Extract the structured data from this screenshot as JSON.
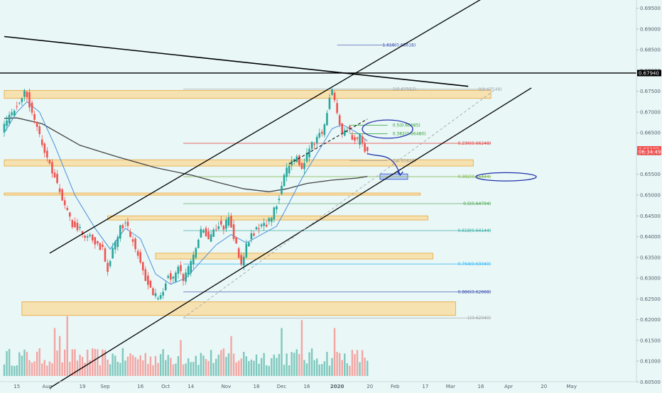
{
  "chart_data": {
    "type": "candlestick",
    "y_axis": {
      "ylim": [
        0.603,
        0.697
      ],
      "ticks": [
        "0.69500",
        "0.69000",
        "0.68500",
        "0.68000",
        "0.67500",
        "0.67000",
        "0.66500",
        "0.66000",
        "0.65500",
        "0.65000",
        "0.64500",
        "0.64000",
        "0.63500",
        "0.63000",
        "0.62500",
        "0.62000",
        "0.61500",
        "0.61000",
        "0.60500"
      ],
      "price_labels": [
        {
          "value": 0.6794,
          "text": "0.67940",
          "bg": "#000000",
          "fg": "#ffffff"
        },
        {
          "value": 0.66103,
          "text": "0.66103",
          "bg": "#ef5350",
          "fg": "#ffffff"
        },
        {
          "value": 0.6604,
          "text": "06:34:49",
          "bg": "#ef5350",
          "fg": "#ffffff"
        }
      ]
    },
    "x_axis": {
      "ticks": [
        {
          "label": "15",
          "bar": 5,
          "bold": false
        },
        {
          "label": "Aug",
          "bar": 17,
          "bold": false
        },
        {
          "label": "19",
          "bar": 31,
          "bold": false
        },
        {
          "label": "Sep",
          "bar": 40,
          "bold": false
        },
        {
          "label": "16",
          "bar": 54,
          "bold": false
        },
        {
          "label": "Oct",
          "bar": 64,
          "bold": false
        },
        {
          "label": "14",
          "bar": 74,
          "bold": false
        },
        {
          "label": "Nov",
          "bar": 88,
          "bold": false
        },
        {
          "label": "18",
          "bar": 100,
          "bold": false
        },
        {
          "label": "Dec",
          "bar": 110,
          "bold": false
        },
        {
          "label": "16",
          "bar": 120,
          "bold": false
        },
        {
          "label": "2020",
          "bar": 132,
          "bold": true
        },
        {
          "label": "20",
          "bar": 145,
          "bold": false
        },
        {
          "label": "Feb",
          "bar": 155,
          "bold": false
        },
        {
          "label": "17",
          "bar": 167,
          "bold": false
        },
        {
          "label": "Mar",
          "bar": 177,
          "bold": false
        },
        {
          "label": "16",
          "bar": 189,
          "bold": false
        },
        {
          "label": "Apr",
          "bar": 200,
          "bold": false
        },
        {
          "label": "20",
          "bar": 214,
          "bold": false
        },
        {
          "label": "May",
          "bar": 225,
          "bold": false
        }
      ]
    },
    "price_path": [
      [
        0,
        0.6655
      ],
      [
        4,
        0.67
      ],
      [
        8,
        0.674
      ],
      [
        9,
        0.6752
      ],
      [
        10,
        0.674
      ],
      [
        12,
        0.67
      ],
      [
        16,
        0.662
      ],
      [
        20,
        0.656
      ],
      [
        24,
        0.649
      ],
      [
        28,
        0.643
      ],
      [
        32,
        0.641
      ],
      [
        36,
        0.6395
      ],
      [
        40,
        0.637
      ],
      [
        42,
        0.632
      ],
      [
        44,
        0.6365
      ],
      [
        47,
        0.642
      ],
      [
        49,
        0.6435
      ],
      [
        51,
        0.64
      ],
      [
        54,
        0.636
      ],
      [
        57,
        0.63
      ],
      [
        60,
        0.626
      ],
      [
        62,
        0.625
      ],
      [
        64,
        0.6275
      ],
      [
        66,
        0.631
      ],
      [
        68,
        0.63
      ],
      [
        70,
        0.633
      ],
      [
        72,
        0.629
      ],
      [
        74,
        0.632
      ],
      [
        76,
        0.635
      ],
      [
        78,
        0.64
      ],
      [
        80,
        0.642
      ],
      [
        82,
        0.6395
      ],
      [
        84,
        0.642
      ],
      [
        86,
        0.643
      ],
      [
        88,
        0.6415
      ],
      [
        90,
        0.645
      ],
      [
        92,
        0.64
      ],
      [
        94,
        0.635
      ],
      [
        95,
        0.633
      ],
      [
        97,
        0.638
      ],
      [
        99,
        0.64
      ],
      [
        101,
        0.642
      ],
      [
        103,
        0.6425
      ],
      [
        105,
        0.643
      ],
      [
        107,
        0.6445
      ],
      [
        109,
        0.648
      ],
      [
        111,
        0.652
      ],
      [
        113,
        0.656
      ],
      [
        115,
        0.6575
      ],
      [
        117,
        0.659
      ],
      [
        119,
        0.656
      ],
      [
        121,
        0.66
      ],
      [
        123,
        0.662
      ],
      [
        125,
        0.664
      ],
      [
        127,
        0.665
      ],
      [
        129,
        0.67
      ],
      [
        130,
        0.674
      ],
      [
        131,
        0.6755
      ],
      [
        132,
        0.673
      ],
      [
        133,
        0.67
      ],
      [
        135,
        0.665
      ],
      [
        137,
        0.666
      ],
      [
        139,
        0.664
      ],
      [
        141,
        0.663
      ],
      [
        142,
        0.665
      ],
      [
        143,
        0.662
      ],
      [
        144,
        0.661
      ]
    ],
    "volume": {
      "bars": 145,
      "base_max": 0.035,
      "spikes": [
        [
          25,
          0.075
        ],
        [
          20,
          0.06
        ],
        [
          22,
          0.05
        ],
        [
          110,
          0.06
        ],
        [
          118,
          0.07
        ],
        [
          131,
          0.06
        ],
        [
          90,
          0.05
        ],
        [
          70,
          0.045
        ]
      ]
    },
    "moving_averages": [
      {
        "color": "#444444",
        "width": 1.3,
        "points": [
          [
            0,
            0.6685
          ],
          [
            5,
            0.6686
          ],
          [
            15,
            0.6672
          ],
          [
            30,
            0.662
          ],
          [
            45,
            0.6592
          ],
          [
            60,
            0.6566
          ],
          [
            75,
            0.6547
          ],
          [
            85,
            0.653
          ],
          [
            95,
            0.6515
          ],
          [
            105,
            0.6508
          ],
          [
            112,
            0.6515
          ],
          [
            120,
            0.6528
          ],
          [
            130,
            0.6536
          ],
          [
            140,
            0.6541
          ],
          [
            144,
            0.6545
          ]
        ]
      },
      {
        "color": "#4a90d9",
        "width": 1,
        "points": [
          [
            0,
            0.665
          ],
          [
            5,
            0.67
          ],
          [
            9,
            0.6725
          ],
          [
            14,
            0.67
          ],
          [
            20,
            0.662
          ],
          [
            28,
            0.65
          ],
          [
            36,
            0.642
          ],
          [
            42,
            0.637
          ],
          [
            48,
            0.642
          ],
          [
            54,
            0.6395
          ],
          [
            60,
            0.631
          ],
          [
            66,
            0.6285
          ],
          [
            72,
            0.63
          ],
          [
            78,
            0.634
          ],
          [
            84,
            0.638
          ],
          [
            90,
            0.6405
          ],
          [
            96,
            0.6385
          ],
          [
            102,
            0.6405
          ],
          [
            108,
            0.6425
          ],
          [
            112,
            0.647
          ],
          [
            118,
            0.654
          ],
          [
            124,
            0.66
          ],
          [
            130,
            0.666
          ],
          [
            134,
            0.667
          ],
          [
            140,
            0.665
          ],
          [
            144,
            0.663
          ]
        ]
      }
    ],
    "zones": [
      {
        "label_none": true,
        "x_start": 0,
        "x_end": 193,
        "y_top": 0.6752,
        "y_bottom": 0.6733
      },
      {
        "x_start": 0,
        "x_end": 186,
        "y_top": 0.6585,
        "y_bottom": 0.657
      },
      {
        "x_start": 0,
        "x_end": 165,
        "y_top": 0.6505,
        "y_bottom": 0.65
      },
      {
        "x_start": 41,
        "x_end": 168,
        "y_top": 0.645,
        "y_bottom": 0.644
      },
      {
        "x_start": 60,
        "x_end": 170,
        "y_top": 0.636,
        "y_bottom": 0.6346
      },
      {
        "x_start": 7,
        "x_end": 179,
        "y_top": 0.6243,
        "y_bottom": 0.621
      }
    ],
    "target_box": {
      "x_start": 149,
      "x_end": 160,
      "y_top": 0.6551,
      "y_bottom": 0.6538,
      "color": "#3b5bdb"
    },
    "horizontal_line": {
      "value": 0.6794,
      "color": "#000000"
    },
    "trendlines": [
      {
        "color": "#000000",
        "width": 1.6,
        "dash": false,
        "from": [
          0,
          0.6882
        ],
        "to": [
          184,
          0.6762
        ]
      },
      {
        "color": "#000000",
        "width": 1.3,
        "dash": false,
        "from": [
          18,
          0.636
        ],
        "to": [
          190,
          0.6975
        ]
      },
      {
        "color": "#000000",
        "width": 1.3,
        "dash": false,
        "from": [
          18,
          0.6035
        ],
        "to": [
          209,
          0.6758
        ]
      },
      {
        "color": "#000000",
        "width": 1.0,
        "dash": true,
        "from": [
          113,
          0.6575
        ],
        "to": [
          144,
          0.6683
        ]
      },
      {
        "color": "#9aa0a6",
        "width": 0.8,
        "dash": true,
        "from": [
          71,
          0.6204
        ],
        "to": [
          194,
          0.6751
        ]
      }
    ],
    "fib_levels": [
      {
        "label": "1.618(0.68618)",
        "value": 0.68618,
        "x_start": 132,
        "x_end": 155,
        "label_bar": 150,
        "color": "#3949ab",
        "align": "left"
      },
      {
        "label": "1(0.67552)",
        "value": 0.67552,
        "x_start": 71,
        "x_end": 167,
        "label_bar": 154,
        "color": "#9e9e9e",
        "align": "left"
      },
      {
        "label": "0(0.67549)",
        "value": 0.67549,
        "x_start": 131,
        "x_end": 193,
        "label_bar": 188,
        "color": "#9e9e9e",
        "align": "left"
      },
      {
        "label": "0.5(0.66685)",
        "value": 0.66685,
        "x_start": 137,
        "x_end": 152,
        "label_bar": 154,
        "color": "#2e9e2e",
        "align": "left"
      },
      {
        "label": "0.382(0.66480)",
        "value": 0.6648,
        "x_start": 137,
        "x_end": 152,
        "label_bar": 154,
        "color": "#2e9e2e",
        "align": "left"
      },
      {
        "label": "0.236(0.66248)",
        "value": 0.66248,
        "x_start": 71,
        "x_end": 193,
        "label_bar": 193,
        "color": "#e53935",
        "align": "right"
      },
      {
        "label": "0(0.65826)",
        "value": 0.65826,
        "x_start": 137,
        "x_end": 152,
        "label_bar": 154,
        "color": "#9e9e9e",
        "align": "left"
      },
      {
        "label": "0.382(0.65444)",
        "value": 0.65444,
        "x_start": 71,
        "x_end": 193,
        "label_bar": 193,
        "color": "#7cb342",
        "align": "right"
      },
      {
        "label": "0.5(0.64794)",
        "value": 0.64794,
        "x_start": 71,
        "x_end": 193,
        "label_bar": 193,
        "color": "#43a047",
        "align": "right"
      },
      {
        "label": "0.618(0.64144)",
        "value": 0.64144,
        "x_start": 71,
        "x_end": 193,
        "label_bar": 193,
        "color": "#26a69a",
        "align": "right"
      },
      {
        "label": "0.764(0.63340)",
        "value": 0.6334,
        "x_start": 71,
        "x_end": 193,
        "label_bar": 193,
        "color": "#29b6f6",
        "align": "right"
      },
      {
        "label": "0.886(0.62668)",
        "value": 0.62668,
        "x_start": 71,
        "x_end": 193,
        "label_bar": 193,
        "color": "#3949ab",
        "align": "right"
      },
      {
        "label": "1(0.62040)",
        "value": 0.6204,
        "x_start": 71,
        "x_end": 193,
        "label_bar": 193,
        "color": "#9e9e9e",
        "align": "right"
      }
    ],
    "ellipses": [
      {
        "center": [
          152,
          0.6659
        ],
        "rx_bars": 10,
        "ry_value": 0.0022,
        "color": "#2233aa"
      },
      {
        "center": [
          199,
          0.6544
        ],
        "rx_bars": 12,
        "ry_value": 0.001,
        "color": "#2233aa"
      }
    ],
    "projection_arrow": {
      "points": [
        [
          144,
          0.66
        ],
        [
          149,
          0.659
        ],
        [
          154,
          0.6605
        ],
        [
          157,
          0.6548
        ]
      ],
      "color": "#2233aa"
    },
    "colors": {
      "background": "#e9f7f7",
      "up": "#26a69a",
      "down": "#ef5350",
      "zone_fill": "#f9d99a",
      "zone_stroke": "#e8a73a",
      "volume_up": "#7fc8bd",
      "volume_down": "#f3a5a2"
    }
  }
}
